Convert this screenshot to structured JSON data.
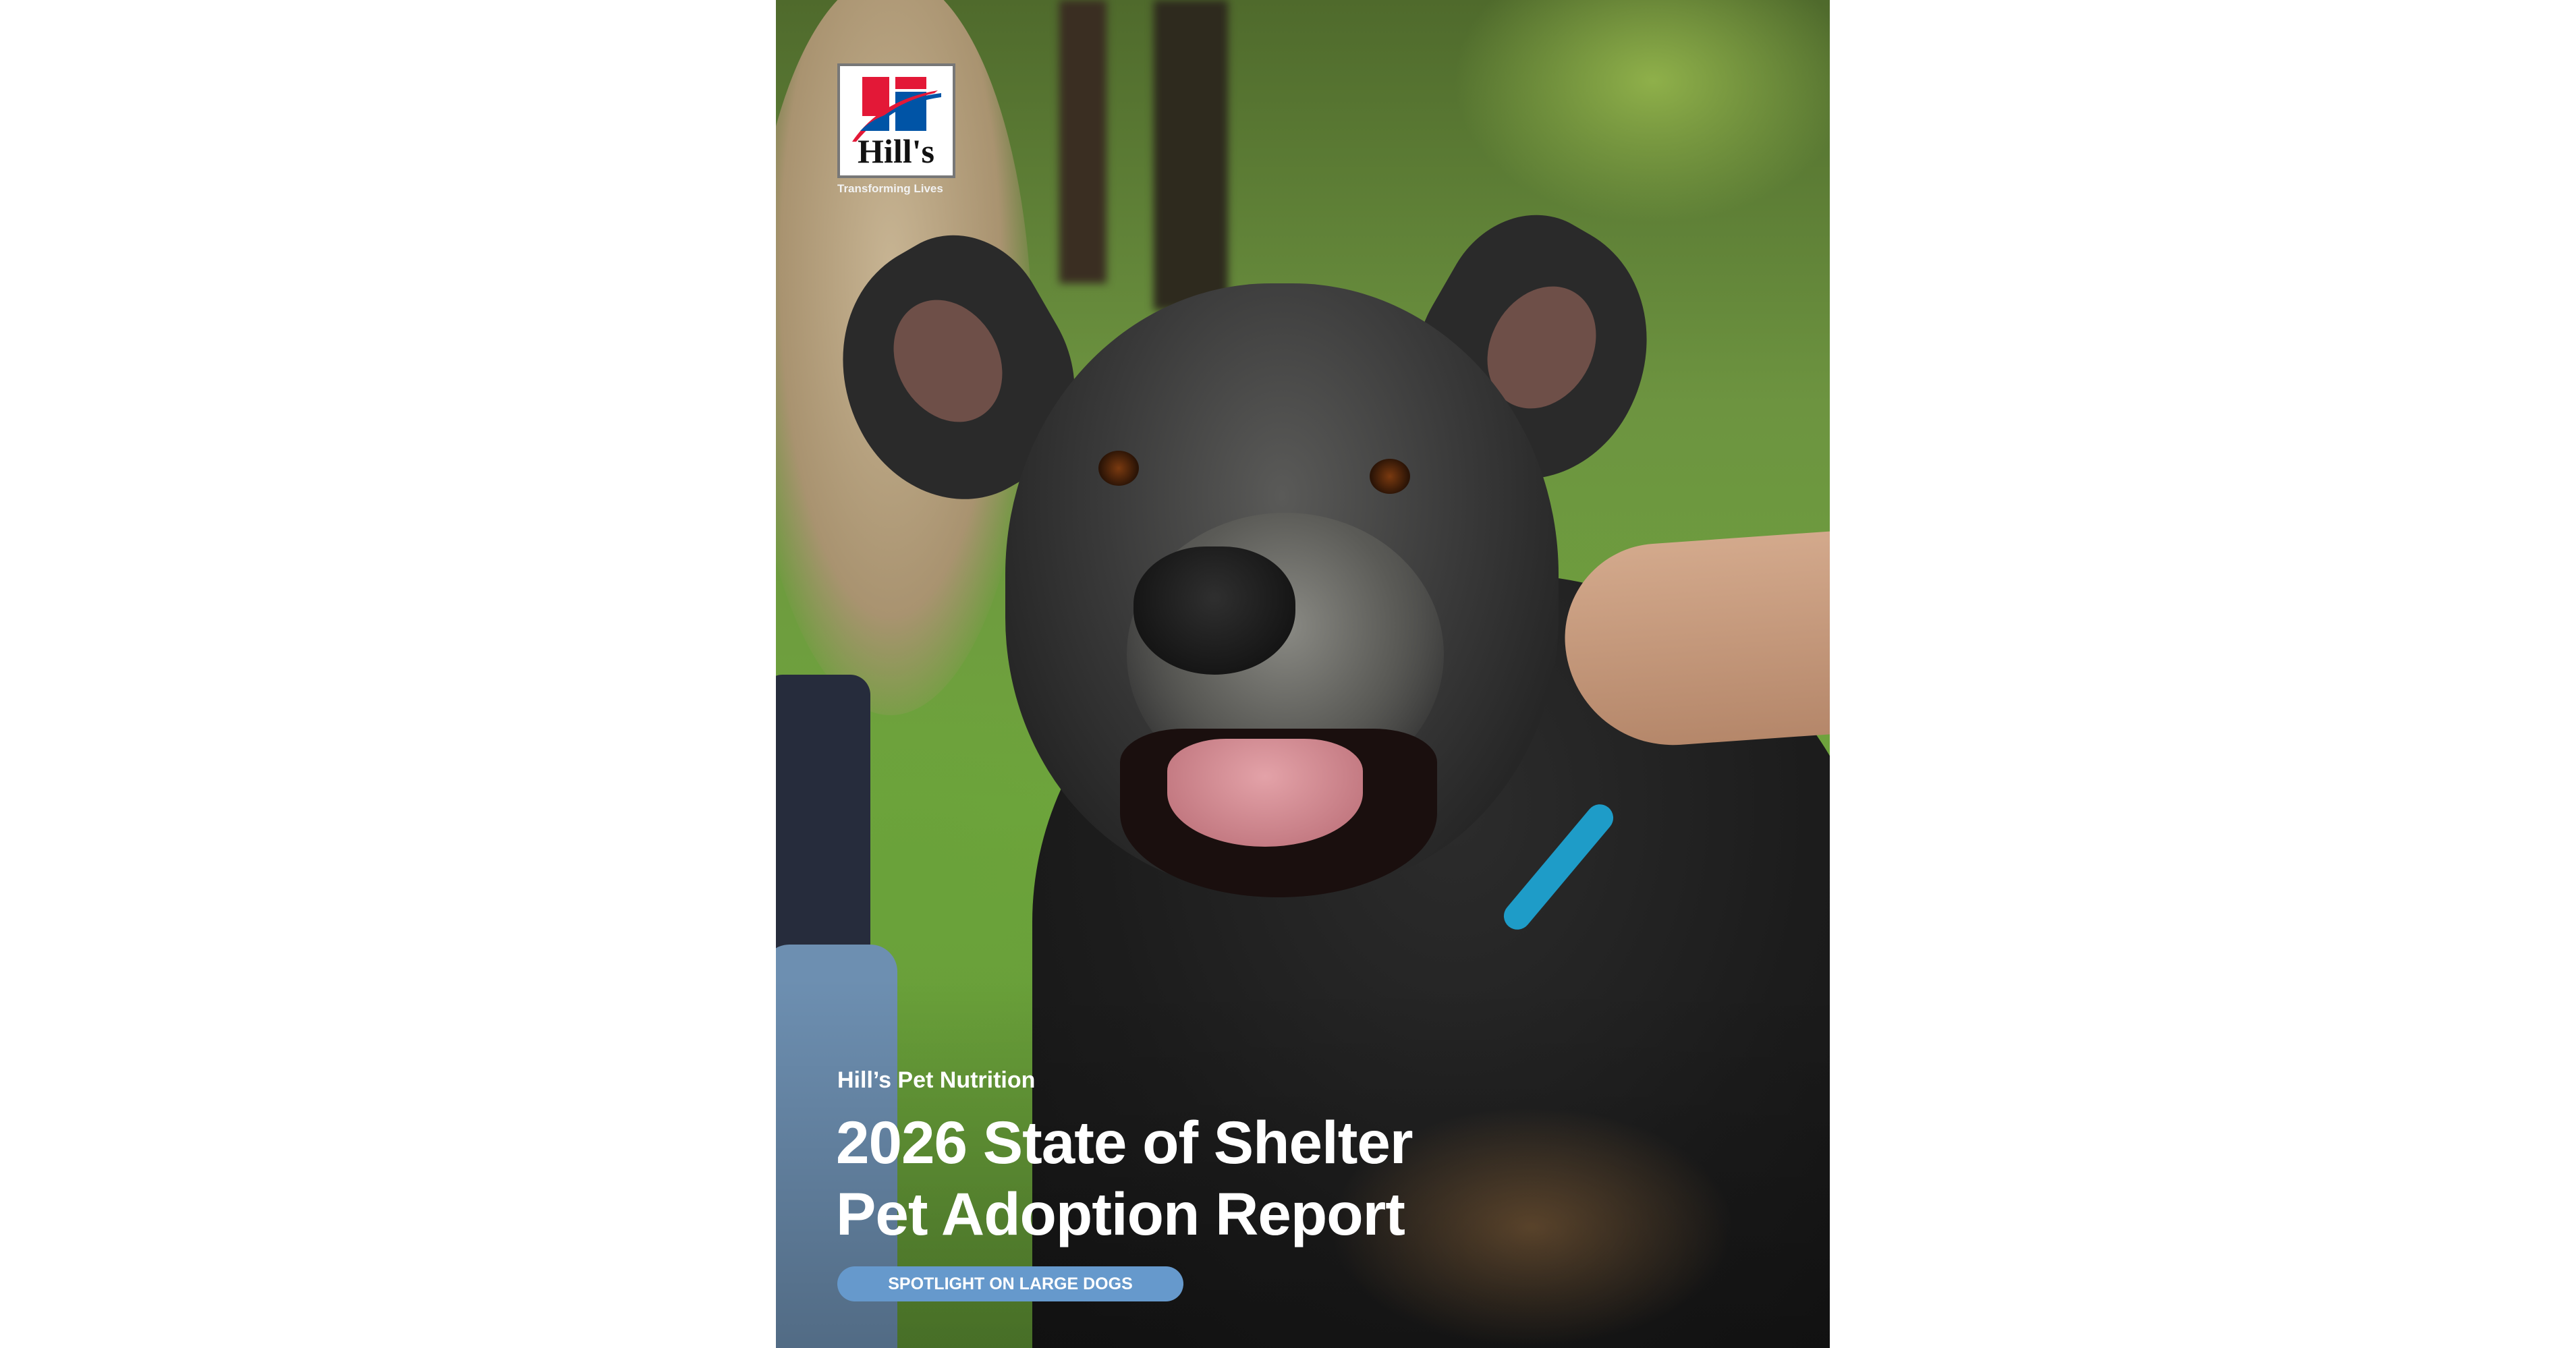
{
  "logo": {
    "wordmark": "Hill's",
    "tagline": "Transforming Lives",
    "colors": {
      "red": "#e31837",
      "blue": "#0054a6",
      "black": "#111111"
    }
  },
  "cover": {
    "publisher": "Hill’s Pet Nutrition",
    "title_line1": "2026 State of Shelter",
    "title_line2": "Pet Adoption Report",
    "badge": "SPOTLIGHT ON LARGE DOGS",
    "badge_color": "#6699cc"
  }
}
